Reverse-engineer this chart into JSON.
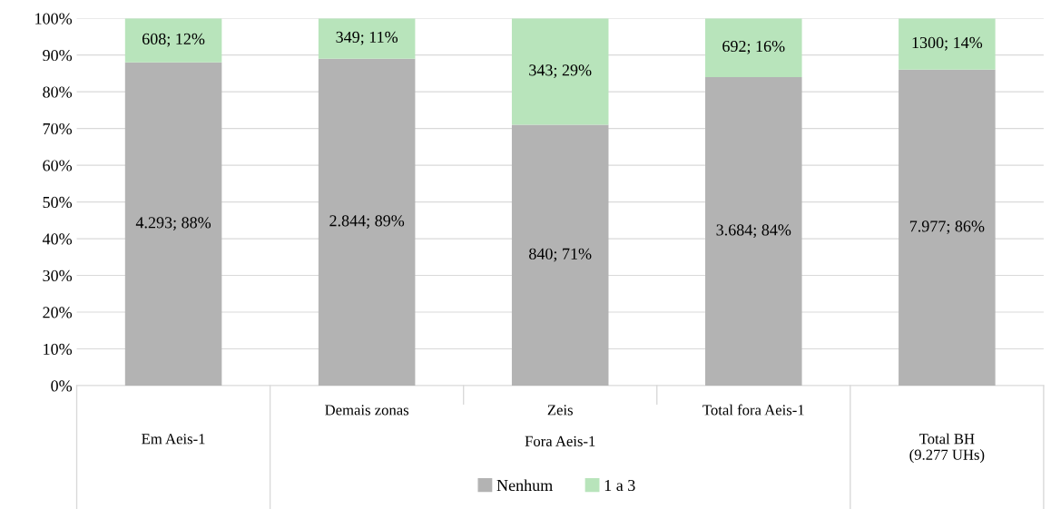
{
  "chart_data": {
    "type": "bar",
    "stacked": true,
    "categories": [
      "Em Aeis-1",
      "Demais zonas",
      "Zeis",
      "Total fora Aeis-1",
      "Total BH\n(9.277 UHs)"
    ],
    "series": [
      {
        "name": "Nenhum",
        "color": "#b3b3b3",
        "values": [
          88,
          89,
          71,
          84,
          86
        ],
        "value_labels": [
          "4.293; 88%",
          "2.844; 89%",
          "840; 71%",
          "3.684; 84%",
          "7.977; 86%"
        ]
      },
      {
        "name": "1 a 3",
        "color": "#b8e4bb",
        "values": [
          12,
          11,
          29,
          16,
          14
        ],
        "value_labels": [
          "608; 12%",
          "349; 11%",
          "343; 29%",
          "692; 16%",
          "1300; 14%"
        ]
      }
    ],
    "annotations": [
      "Fora Aeis-1"
    ],
    "ylim": [
      0,
      100
    ],
    "yticks": [
      {
        "value": 0,
        "label": "0%"
      },
      {
        "value": 10,
        "label": "10%"
      },
      {
        "value": 20,
        "label": "20%"
      },
      {
        "value": 30,
        "label": "30%"
      },
      {
        "value": 40,
        "label": "40%"
      },
      {
        "value": 50,
        "label": "50%"
      },
      {
        "value": 60,
        "label": "60%"
      },
      {
        "value": 70,
        "label": "70%"
      },
      {
        "value": 80,
        "label": "80%"
      },
      {
        "value": 90,
        "label": "90%"
      },
      {
        "value": 100,
        "label": "100%"
      }
    ],
    "grid": "y",
    "legend": "bottom"
  }
}
